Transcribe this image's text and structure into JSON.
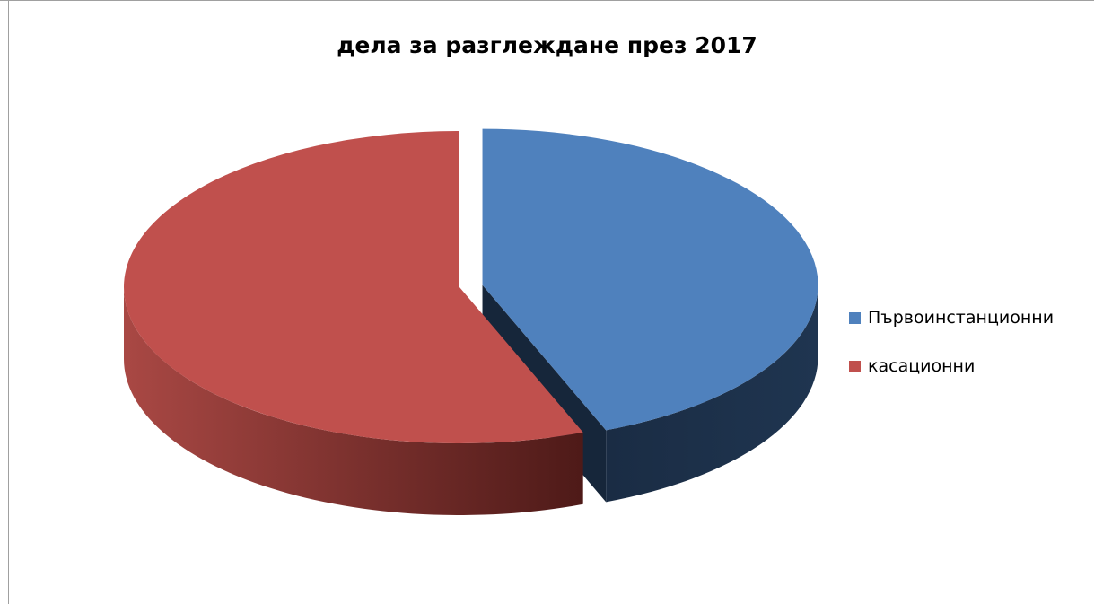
{
  "chart_data": {
    "type": "pie",
    "title": "дела за разглеждане през 2017",
    "categories": [
      "Първоинстанционни",
      "касационни"
    ],
    "values": [
      44,
      56
    ],
    "colors": [
      "#4F81BD",
      "#C0504D"
    ],
    "side_colors": [
      "#1F3550",
      "#7A2D2A"
    ],
    "exploded": "Първоинстанционни",
    "legend_position": "right",
    "style": "3d"
  }
}
